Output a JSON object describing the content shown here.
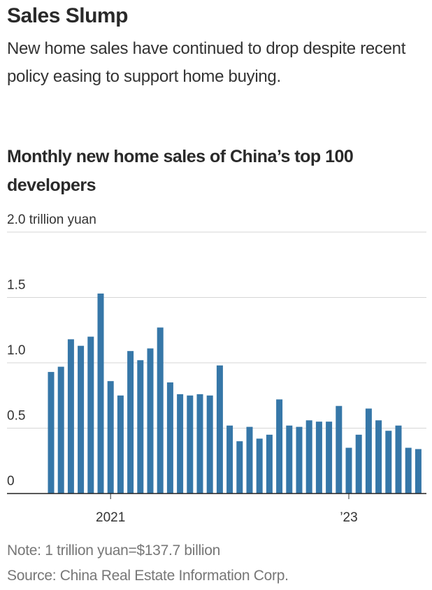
{
  "chart_data": {
    "type": "bar",
    "title": "Sales Slump",
    "subtitle": "New home sales have continued to drop despite recent policy easing to support home buying.",
    "chart_title": "Monthly new home sales of China’s top 100 developers",
    "note": "Note: 1 trillion yuan=$137.7 billion",
    "source": "Source: China Real Estate Information Corp.",
    "categories": [
      null,
      null,
      null,
      null,
      null,
      null,
      "2021",
      null,
      null,
      null,
      null,
      null,
      null,
      null,
      null,
      null,
      null,
      null,
      null,
      null,
      null,
      null,
      null,
      null,
      null,
      null,
      null,
      null,
      null,
      null,
      "’23",
      null,
      null,
      null,
      null,
      null,
      null,
      null
    ],
    "values": [
      0.93,
      0.97,
      1.18,
      1.13,
      1.2,
      1.53,
      0.86,
      0.75,
      1.09,
      1.02,
      1.11,
      1.27,
      0.85,
      0.76,
      0.75,
      0.76,
      0.75,
      0.98,
      0.52,
      0.4,
      0.51,
      0.42,
      0.45,
      0.72,
      0.52,
      0.51,
      0.56,
      0.55,
      0.55,
      0.67,
      0.35,
      0.45,
      0.65,
      0.56,
      0.48,
      0.52,
      0.35,
      0.34
    ],
    "color": "#3677a8",
    "ylim": [
      0,
      2.0
    ],
    "yticks": [
      0,
      0.5,
      {
        "value": 1.0,
        "label": "1.0"
      },
      1.5,
      {
        "value": 2.0,
        "label": "2.0 trillion yuan"
      }
    ],
    "grid": true
  }
}
